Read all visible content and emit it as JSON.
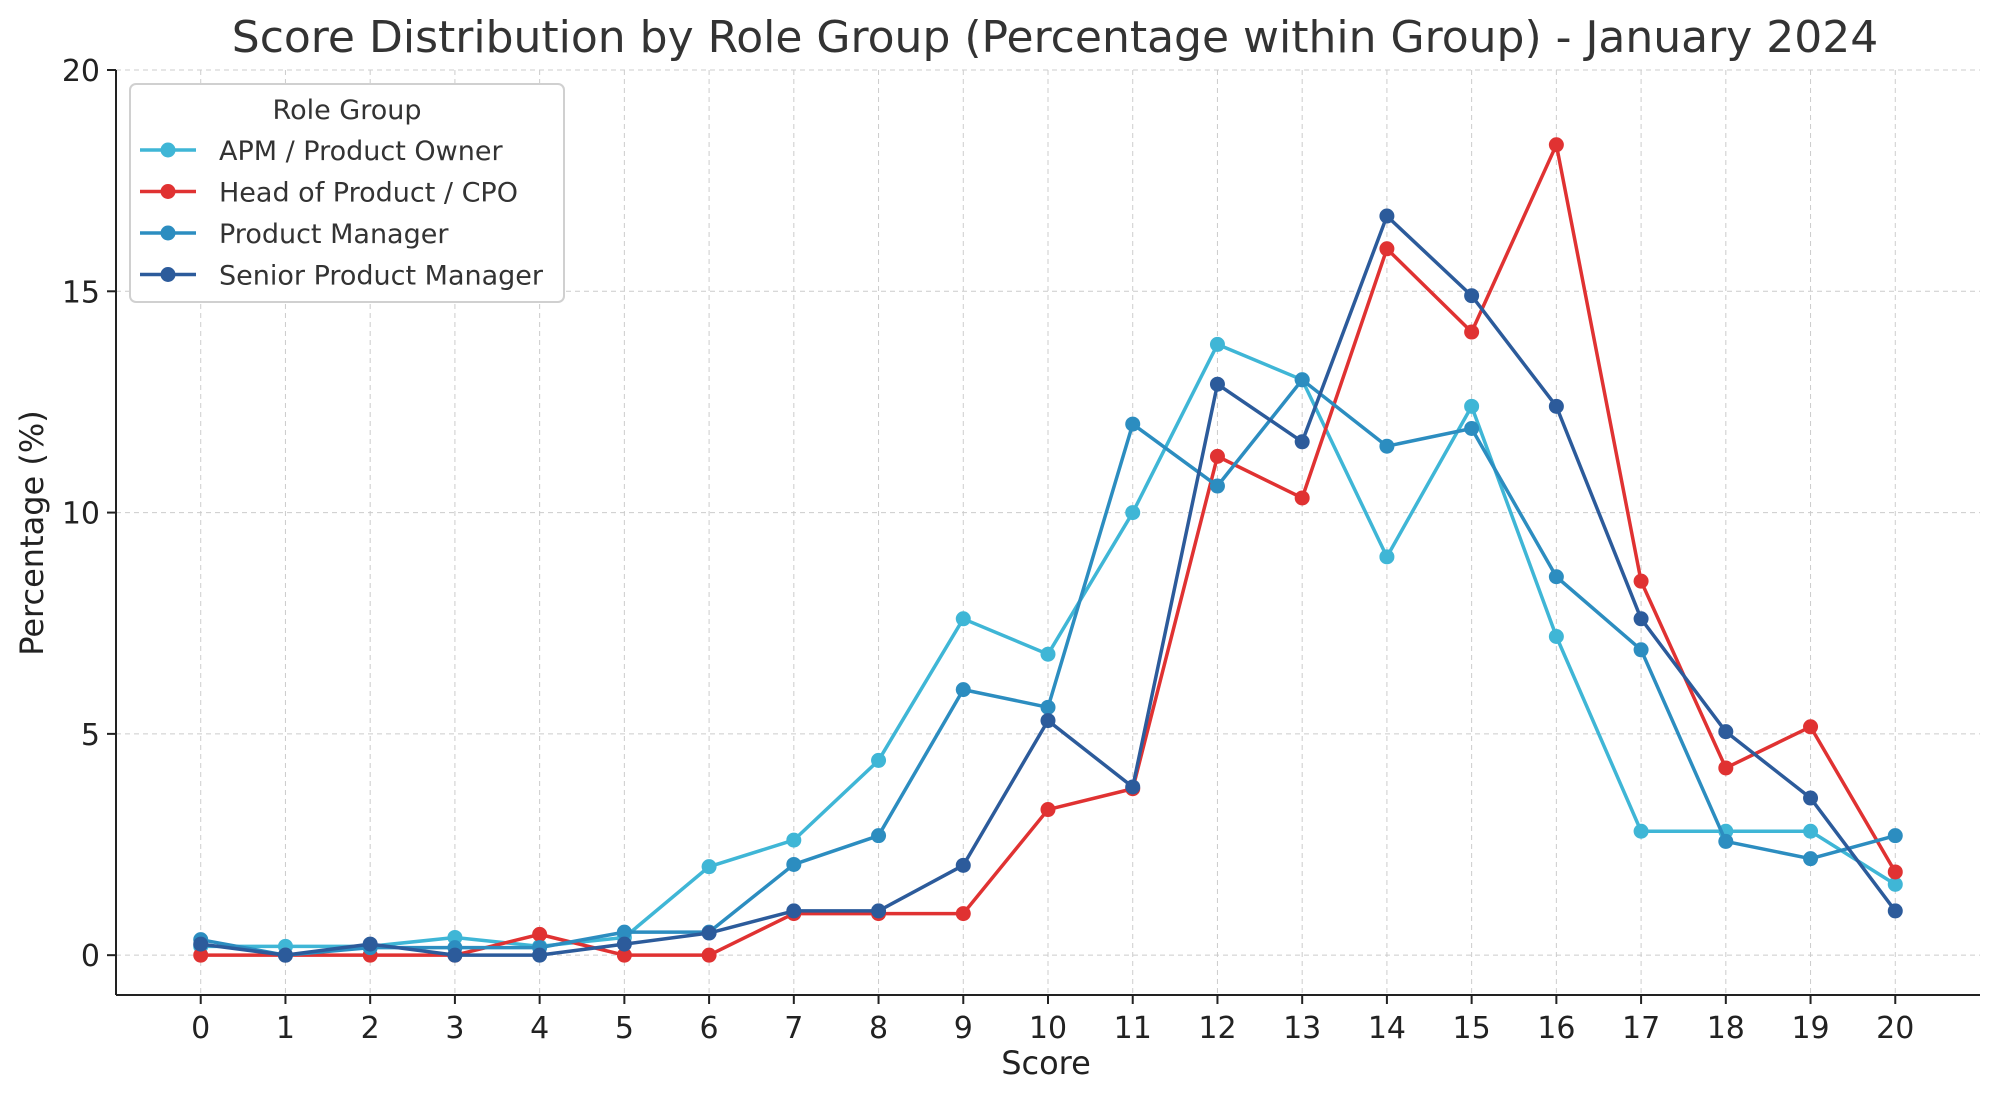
{
  "chart_data": {
    "type": "line",
    "title": "Score Distribution by Role Group (Percentage within Group) - January 2024",
    "xlabel": "Score",
    "ylabel": "Percentage (%)",
    "x": [
      0,
      1,
      2,
      3,
      4,
      5,
      6,
      7,
      8,
      9,
      10,
      11,
      12,
      13,
      14,
      15,
      16,
      17,
      18,
      19,
      20
    ],
    "x_tick_labels": [
      "0",
      "1",
      "2",
      "3",
      "4",
      "5",
      "6",
      "7",
      "8",
      "9",
      "10",
      "11",
      "12",
      "13",
      "14",
      "15",
      "16",
      "17",
      "18",
      "19",
      "20"
    ],
    "xlim": [
      -1,
      21
    ],
    "ylim": [
      -0.9,
      20
    ],
    "y_ticks": [
      0,
      5,
      10,
      15,
      20
    ],
    "y_tick_labels": [
      "0",
      "5",
      "10",
      "15",
      "20"
    ],
    "grid": true,
    "legend": {
      "title": "Role Group",
      "placement": "top-left"
    },
    "series": [
      {
        "name": "APM / Product Owner",
        "color": "#3fb6d6",
        "values": [
          0.2,
          0.2,
          0.2,
          0.4,
          0.2,
          0.4,
          2.0,
          2.6,
          4.4,
          7.6,
          6.8,
          10.0,
          13.8,
          13.0,
          9.0,
          12.4,
          7.2,
          2.8,
          2.8,
          2.8,
          1.6
        ]
      },
      {
        "name": "Head of Product / CPO",
        "color": "#e03232",
        "values": [
          0.0,
          0.0,
          0.0,
          0.0,
          0.47,
          0.0,
          0.0,
          0.94,
          0.94,
          0.94,
          3.29,
          3.76,
          11.27,
          10.33,
          15.96,
          14.08,
          18.31,
          8.45,
          4.23,
          5.16,
          1.88
        ]
      },
      {
        "name": "Product Manager",
        "color": "#2c8dc0",
        "values": [
          0.35,
          0.0,
          0.17,
          0.17,
          0.17,
          0.52,
          0.52,
          2.05,
          2.7,
          6.0,
          5.6,
          12.0,
          10.6,
          13.0,
          11.5,
          11.9,
          8.55,
          6.9,
          2.57,
          2.18,
          2.7
        ]
      },
      {
        "name": "Senior Product Manager",
        "color": "#2c5b9b",
        "values": [
          0.25,
          0.0,
          0.25,
          0.0,
          0.0,
          0.25,
          0.5,
          1.0,
          1.0,
          2.03,
          5.3,
          3.8,
          12.9,
          11.6,
          16.7,
          14.9,
          12.4,
          7.6,
          5.05,
          3.55,
          1.0
        ]
      }
    ]
  }
}
